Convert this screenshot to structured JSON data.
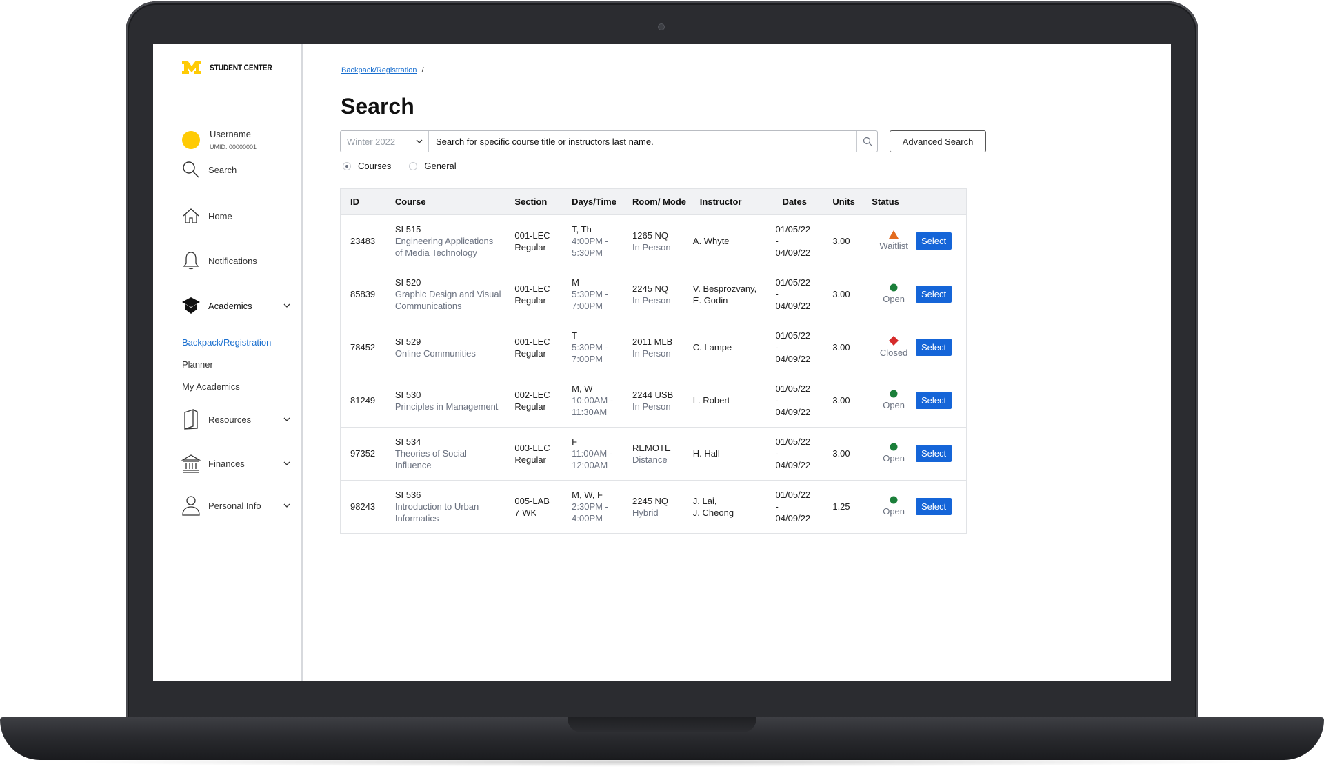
{
  "brand": {
    "name": "STUDENT CENTER",
    "color": "#ffcb05"
  },
  "user": {
    "name": "Username",
    "umid": "UMID: 00000001"
  },
  "nav": {
    "search": "Search",
    "home": "Home",
    "notifications": "Notifications",
    "academics": "Academics",
    "sub": {
      "backpack": "Backpack/Registration",
      "planner": "Planner",
      "my_academics": "My Academics"
    },
    "resources": "Resources",
    "finances": "Finances",
    "personal_info": "Personal Info"
  },
  "breadcrumb": {
    "link": "Backpack/Registration",
    "sep": "/"
  },
  "page_title": "Search",
  "search": {
    "term": "Winter 2022",
    "placeholder": "Search for specific course title or instructors last name.",
    "advanced_label": "Advanced Search"
  },
  "radios": {
    "courses": "Courses",
    "general": "General",
    "selected": "Courses"
  },
  "table": {
    "headers": {
      "id": "ID",
      "course": "Course",
      "section": "Section",
      "days_time": "Days/Time",
      "room_mode": "Room/ Mode",
      "instructor": "Instructor",
      "dates": "Dates",
      "units": "Units",
      "status": "Status"
    },
    "select_label": "Select",
    "status_colors": {
      "Waitlist": "#e36b1e",
      "Open": "#1b7f3a",
      "Closed": "#d62b2b"
    },
    "rows": [
      {
        "id": "23483",
        "code": "SI 515",
        "title1": "Engineering Applications",
        "title2": "of Media Technology",
        "section": "001-LEC",
        "section_type": "Regular",
        "days": "T, Th",
        "time1": "4:00PM -",
        "time2": "5:30PM",
        "room": "1265 NQ",
        "mode": "In Person",
        "instr1": "A. Whyte",
        "instr2": "",
        "date_start": "01/05/22",
        "date_sep": "-",
        "date_end": "04/09/22",
        "units": "3.00",
        "status": "Waitlist"
      },
      {
        "id": "85839",
        "code": "SI 520",
        "title1": "Graphic Design and Visual",
        "title2": "Communications",
        "section": "001-LEC",
        "section_type": "Regular",
        "days": "M",
        "time1": "5:30PM -",
        "time2": "7:00PM",
        "room": "2245 NQ",
        "mode": "In Person",
        "instr1": "V. Besprozvany,",
        "instr2": "E. Godin",
        "date_start": "01/05/22",
        "date_sep": "-",
        "date_end": "04/09/22",
        "units": "3.00",
        "status": "Open"
      },
      {
        "id": "78452",
        "code": "SI 529",
        "title1": "Online Communities",
        "title2": "",
        "section": "001-LEC",
        "section_type": "Regular",
        "days": "T",
        "time1": "5:30PM -",
        "time2": "7:00PM",
        "room": "2011 MLB",
        "mode": "In Person",
        "instr1": "C. Lampe",
        "instr2": "",
        "date_start": "01/05/22",
        "date_sep": "-",
        "date_end": "04/09/22",
        "units": "3.00",
        "status": "Closed"
      },
      {
        "id": "81249",
        "code": "SI 530",
        "title1": "Principles in Management",
        "title2": "",
        "section": "002-LEC",
        "section_type": "Regular",
        "days": "M, W",
        "time1": "10:00AM -",
        "time2": "11:30AM",
        "room": "2244 USB",
        "mode": "In Person",
        "instr1": "L. Robert",
        "instr2": "",
        "date_start": "01/05/22",
        "date_sep": "-",
        "date_end": "04/09/22",
        "units": "3.00",
        "status": "Open"
      },
      {
        "id": "97352",
        "code": "SI 534",
        "title1": "Theories of Social",
        "title2": "Influence",
        "section": "003-LEC",
        "section_type": "Regular",
        "days": "F",
        "time1": "11:00AM -",
        "time2": "12:00AM",
        "room": "REMOTE",
        "mode": "Distance",
        "instr1": "H. Hall",
        "instr2": "",
        "date_start": "01/05/22",
        "date_sep": "-",
        "date_end": "04/09/22",
        "units": "3.00",
        "status": "Open"
      },
      {
        "id": "98243",
        "code": "SI 536",
        "title1": "Introduction to Urban",
        "title2": "Informatics",
        "section": "005-LAB",
        "section_type": "7 WK",
        "days": "M, W, F",
        "time1": "2:30PM -",
        "time2": "4:00PM",
        "room": "2245 NQ",
        "mode": "Hybrid",
        "instr1": "J. Lai,",
        "instr2": "J. Cheong",
        "date_start": "01/05/22",
        "date_sep": "-",
        "date_end": "04/09/22",
        "units": "1.25",
        "status": "Open"
      }
    ]
  }
}
